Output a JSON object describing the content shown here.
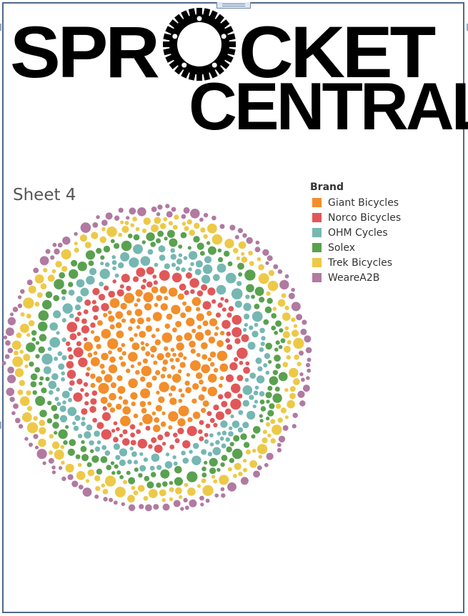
{
  "logo": {
    "line1_left": "SPR",
    "line1_right": "CKET",
    "line2": "CENTRAL",
    "lettering": "SPROCKET CENTRAL"
  },
  "sheet": {
    "title": "Sheet 4"
  },
  "legend": {
    "title": "Brand",
    "items": [
      {
        "label": "Giant Bicycles",
        "color": "#f28e2b"
      },
      {
        "label": "Norco Bicycles",
        "color": "#e15759"
      },
      {
        "label": "OHM Cycles",
        "color": "#76b7b2"
      },
      {
        "label": "Solex",
        "color": "#59a14f"
      },
      {
        "label": "Trek Bicycles",
        "color": "#edc948"
      },
      {
        "label": "WeareA2B",
        "color": "#b07aa1"
      }
    ]
  },
  "chart_data": {
    "type": "packed-bubble",
    "title": "Sheet 4",
    "legend_title": "Brand",
    "legend_position": "top-right",
    "series": [
      {
        "name": "Giant Bicycles",
        "color": "#f28e2b",
        "ring": 0
      },
      {
        "name": "Norco Bicycles",
        "color": "#e15759",
        "ring": 1
      },
      {
        "name": "OHM Cycles",
        "color": "#76b7b2",
        "ring": 2
      },
      {
        "name": "Solex",
        "color": "#59a14f",
        "ring": 3
      },
      {
        "name": "Trek Bicycles",
        "color": "#edc948",
        "ring": 4
      },
      {
        "name": "WeareA2B",
        "color": "#b07aa1",
        "ring": 5
      }
    ]
  }
}
